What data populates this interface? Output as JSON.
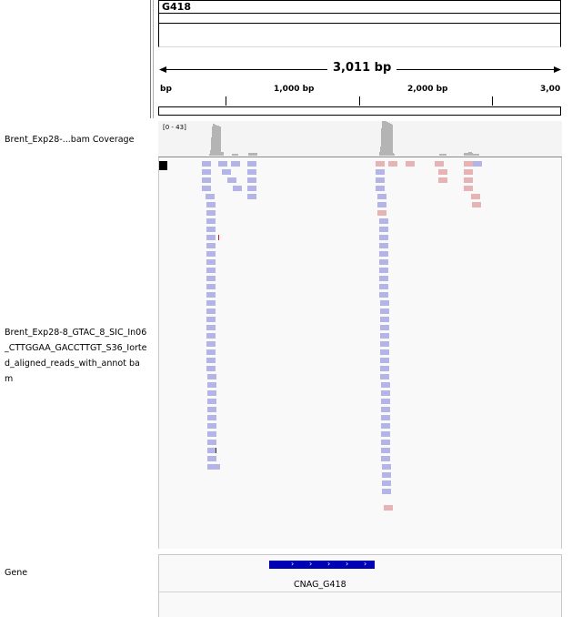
{
  "ruler": {
    "chromosome": "G418",
    "span": "3,011 bp",
    "ticks": [
      {
        "label": "bp",
        "x": 176
      },
      {
        "label": "1,000 bp",
        "x": 301
      },
      {
        "label": "2,000 bp",
        "x": 448
      },
      {
        "label": "3,00",
        "x": 594
      }
    ]
  },
  "tracks": {
    "coverage_name": "Brent_Exp28-...bam Coverage",
    "coverage_range": "[0 - 43]",
    "alignment_name": "Brent_Exp28-8_GTAC_8_SIC_In06_CTTGGAA_GACCTTGT_S36_Iorted_aligned_reads_with_annot bam",
    "gene_track_name": "Gene",
    "gene_name": "CNAG_G418"
  },
  "colors": {
    "read_forward": "#b4b4e6",
    "read_reverse": "#e6b4b4",
    "coverage": "#b4b4b4",
    "gene": "#0000b4",
    "mismatch": "#c81e1e"
  }
}
